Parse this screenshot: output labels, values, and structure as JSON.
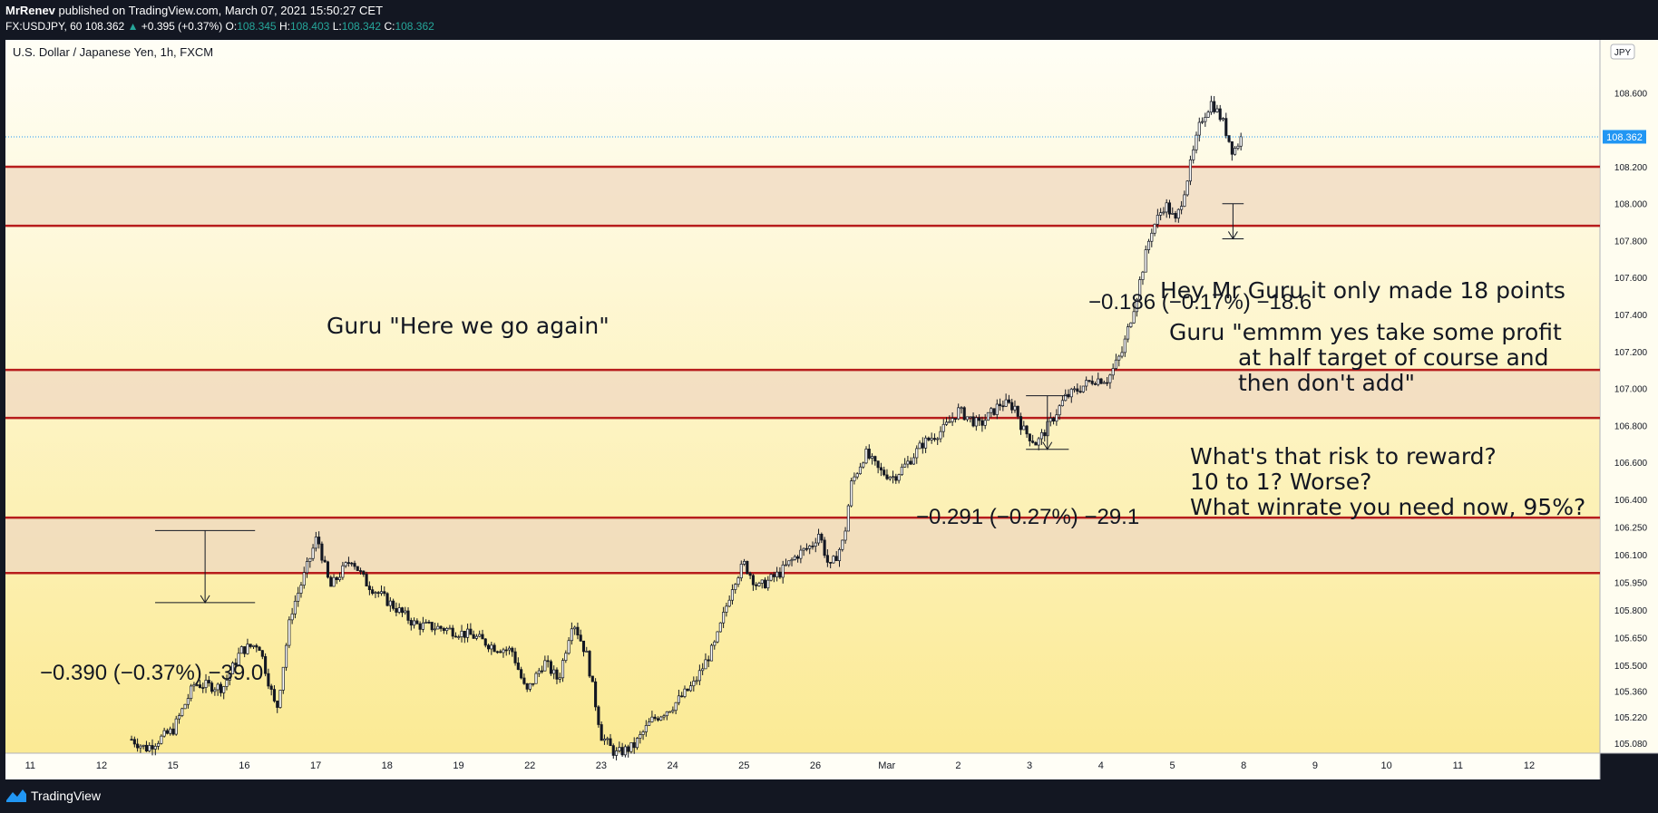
{
  "header": {
    "publisher_name": "MrRenev",
    "publisher_text": " published on TradingView.com, March 07, 2021 15:50:27 CET",
    "symbol": "FX:USDJPY, 60",
    "last": "108.362",
    "change": "+0.395 (+0.37%)",
    "o_label": "O:",
    "o_value": "108.345",
    "h_label": "H:",
    "h_value": "108.403",
    "l_label": "L:",
    "l_value": "108.342",
    "c_label": "C:",
    "c_value": "108.362"
  },
  "footer": {
    "brand": "TradingView"
  },
  "chart_data": {
    "type": "candlestick",
    "title": "U.S. Dollar / Japanese Yen, 1h, FXCM",
    "currency_badge": "JPY",
    "last_price_label": "108.362",
    "last_price": 108.362,
    "ylim": [
      105.02,
      108.72
    ],
    "y_ticks": [
      105.08,
      105.22,
      105.36,
      105.5,
      105.65,
      105.8,
      105.95,
      106.1,
      106.25,
      106.4,
      106.6,
      106.8,
      107.0,
      107.2,
      107.4,
      107.6,
      107.8,
      108.0,
      108.2,
      108.6
    ],
    "x_ticks": [
      "11",
      "12",
      "15",
      "16",
      "17",
      "18",
      "19",
      "22",
      "23",
      "24",
      "25",
      "26",
      "Mar",
      "2",
      "3",
      "4",
      "5",
      "8",
      "9",
      "10",
      "11",
      "12"
    ],
    "x_tick_days": [
      -1,
      0,
      1,
      2,
      3,
      4,
      5,
      6,
      7,
      8,
      9,
      10,
      11,
      12,
      13,
      14,
      15,
      16,
      17,
      18,
      19,
      20
    ],
    "price_path": [
      [
        0.42,
        105.1
      ],
      [
        0.62,
        105.05
      ],
      [
        1.0,
        105.15
      ],
      [
        1.3,
        105.4
      ],
      [
        1.7,
        105.38
      ],
      [
        1.95,
        105.58
      ],
      [
        2.2,
        105.62
      ],
      [
        2.45,
        105.25
      ],
      [
        2.65,
        105.78
      ],
      [
        2.85,
        106.0
      ],
      [
        3.02,
        106.2
      ],
      [
        3.2,
        105.92
      ],
      [
        3.5,
        106.08
      ],
      [
        3.7,
        105.95
      ],
      [
        4.0,
        105.85
      ],
      [
        4.4,
        105.72
      ],
      [
        4.8,
        105.7
      ],
      [
        5.2,
        105.66
      ],
      [
        5.5,
        105.6
      ],
      [
        5.75,
        105.58
      ],
      [
        5.95,
        105.35
      ],
      [
        6.2,
        105.52
      ],
      [
        6.4,
        105.42
      ],
      [
        6.6,
        105.75
      ],
      [
        6.8,
        105.55
      ],
      [
        7.0,
        105.12
      ],
      [
        7.2,
        105.02
      ],
      [
        7.45,
        105.06
      ],
      [
        7.7,
        105.2
      ],
      [
        8.0,
        105.28
      ],
      [
        8.3,
        105.4
      ],
      [
        8.6,
        105.62
      ],
      [
        8.85,
        105.95
      ],
      [
        9.0,
        106.05
      ],
      [
        9.2,
        105.92
      ],
      [
        9.5,
        106.0
      ],
      [
        9.75,
        106.1
      ],
      [
        9.95,
        106.15
      ],
      [
        10.05,
        106.22
      ],
      [
        10.2,
        106.02
      ],
      [
        10.4,
        106.18
      ],
      [
        10.5,
        106.48
      ],
      [
        10.7,
        106.65
      ],
      [
        10.9,
        106.55
      ],
      [
        11.1,
        106.52
      ],
      [
        11.3,
        106.6
      ],
      [
        11.5,
        106.7
      ],
      [
        11.8,
        106.78
      ],
      [
        12.0,
        106.88
      ],
      [
        12.3,
        106.8
      ],
      [
        12.6,
        106.92
      ],
      [
        12.8,
        106.9
      ],
      [
        12.9,
        106.78
      ],
      [
        13.1,
        106.7
      ],
      [
        13.3,
        106.82
      ],
      [
        13.5,
        106.95
      ],
      [
        13.7,
        107.0
      ],
      [
        13.9,
        107.05
      ],
      [
        14.1,
        107.05
      ],
      [
        14.3,
        107.2
      ],
      [
        14.5,
        107.5
      ],
      [
        14.7,
        107.85
      ],
      [
        14.9,
        108.0
      ],
      [
        15.05,
        107.9
      ],
      [
        15.2,
        108.12
      ],
      [
        15.4,
        108.45
      ],
      [
        15.55,
        108.55
      ],
      [
        15.7,
        108.45
      ],
      [
        15.85,
        108.28
      ],
      [
        16.0,
        108.38
      ]
    ],
    "zones": [
      {
        "low": 107.88,
        "high": 108.2
      },
      {
        "low": 106.84,
        "high": 107.1
      },
      {
        "low": 106.0,
        "high": 106.3
      }
    ],
    "measurements": [
      {
        "day_from": 0.75,
        "day_to": 2.15,
        "from": 106.23,
        "to": 105.84,
        "label": "−0.390 (−0.37%) −39.0"
      },
      {
        "day_from": 12.95,
        "day_to": 13.55,
        "from": 106.96,
        "to": 106.67,
        "label": "−0.291 (−0.27%) −29.1"
      },
      {
        "day_from": 15.7,
        "day_to": 16.0,
        "from": 108.0,
        "to": 107.81,
        "label": "−0.186 (−0.17%) −18.6"
      }
    ],
    "annotations": [
      "Guru \"Here we go again\"",
      "Hey Mr Guru it only made 18 points",
      "Guru \"emmm yes take some profit",
      "at half target of course and",
      "then don't add\"",
      "What's that risk to reward?",
      "10 to 1? Worse?",
      "What winrate you need now, 95%?"
    ],
    "colors": {
      "bull": "#131722",
      "bear": "#131722",
      "zone_line": "#b71c1c",
      "zone_fill": "#efd8c0",
      "bg_top": "#fffef6",
      "bg_bottom": "#fbea94",
      "last_price": "#2196f3",
      "ohlc_value": "#26a69a"
    }
  }
}
